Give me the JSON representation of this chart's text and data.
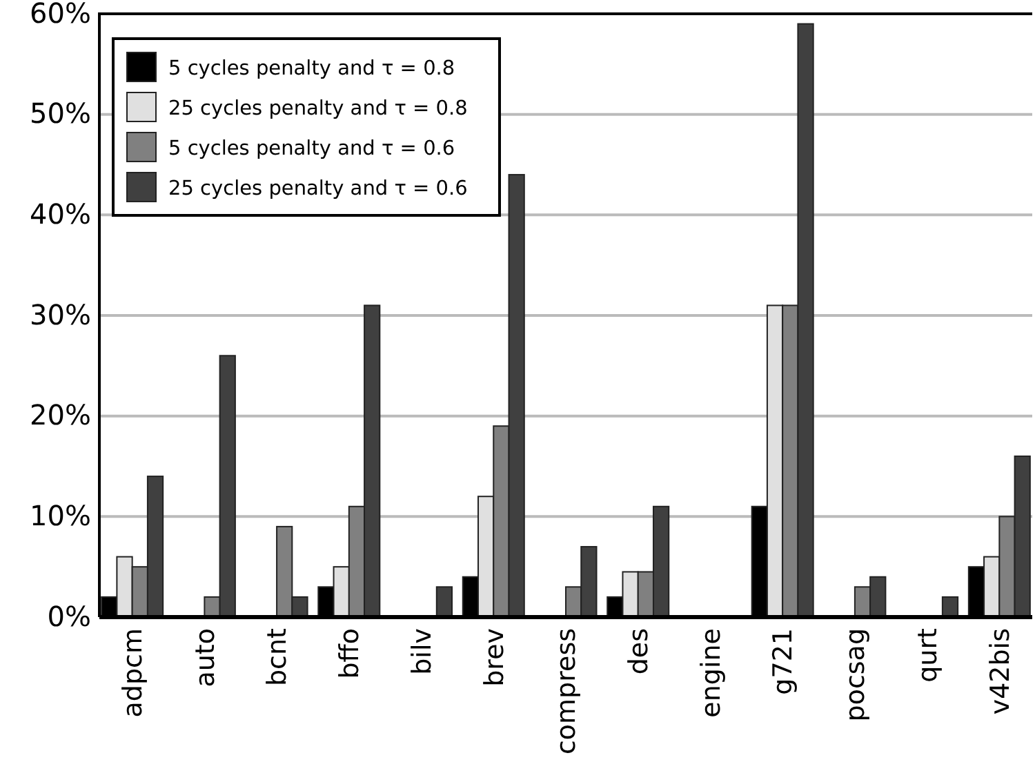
{
  "chart_data": {
    "type": "bar",
    "categories": [
      "adpcm",
      "auto",
      "bcnt",
      "bffo",
      "bilv",
      "brev",
      "compress",
      "des",
      "engine",
      "g721",
      "pocsag",
      "qurt",
      "v42bis"
    ],
    "series": [
      {
        "name": "5 cycles penalty and τ = 0.8",
        "color": "#000000",
        "values": [
          2,
          0,
          0,
          3,
          0,
          4,
          0,
          2,
          0,
          11,
          0,
          0,
          5
        ]
      },
      {
        "name": "25 cycles penalty and τ = 0.8",
        "color": "#e0e0e0",
        "values": [
          6,
          0,
          0,
          5,
          0,
          12,
          0,
          4.5,
          0,
          31,
          0,
          0,
          6
        ]
      },
      {
        "name": "5 cycles penalty and τ = 0.6",
        "color": "#808080",
        "values": [
          5,
          2,
          9,
          11,
          0,
          19,
          3,
          4.5,
          0,
          31,
          3,
          0,
          10
        ]
      },
      {
        "name": "25 cycles penalty and τ = 0.6",
        "color": "#404040",
        "values": [
          14,
          26,
          2,
          31,
          3,
          44,
          7,
          11,
          0,
          59,
          4,
          2,
          16
        ]
      }
    ],
    "ylim": [
      0,
      60
    ],
    "yticks": [
      {
        "value": 0,
        "label": "0%"
      },
      {
        "value": 10,
        "label": "10%"
      },
      {
        "value": 20,
        "label": "20%"
      },
      {
        "value": 30,
        "label": "30%"
      },
      {
        "value": 40,
        "label": "40%"
      },
      {
        "value": 50,
        "label": "50%"
      },
      {
        "value": 60,
        "label": "60%"
      }
    ],
    "grid": "y",
    "legend": "top left"
  }
}
